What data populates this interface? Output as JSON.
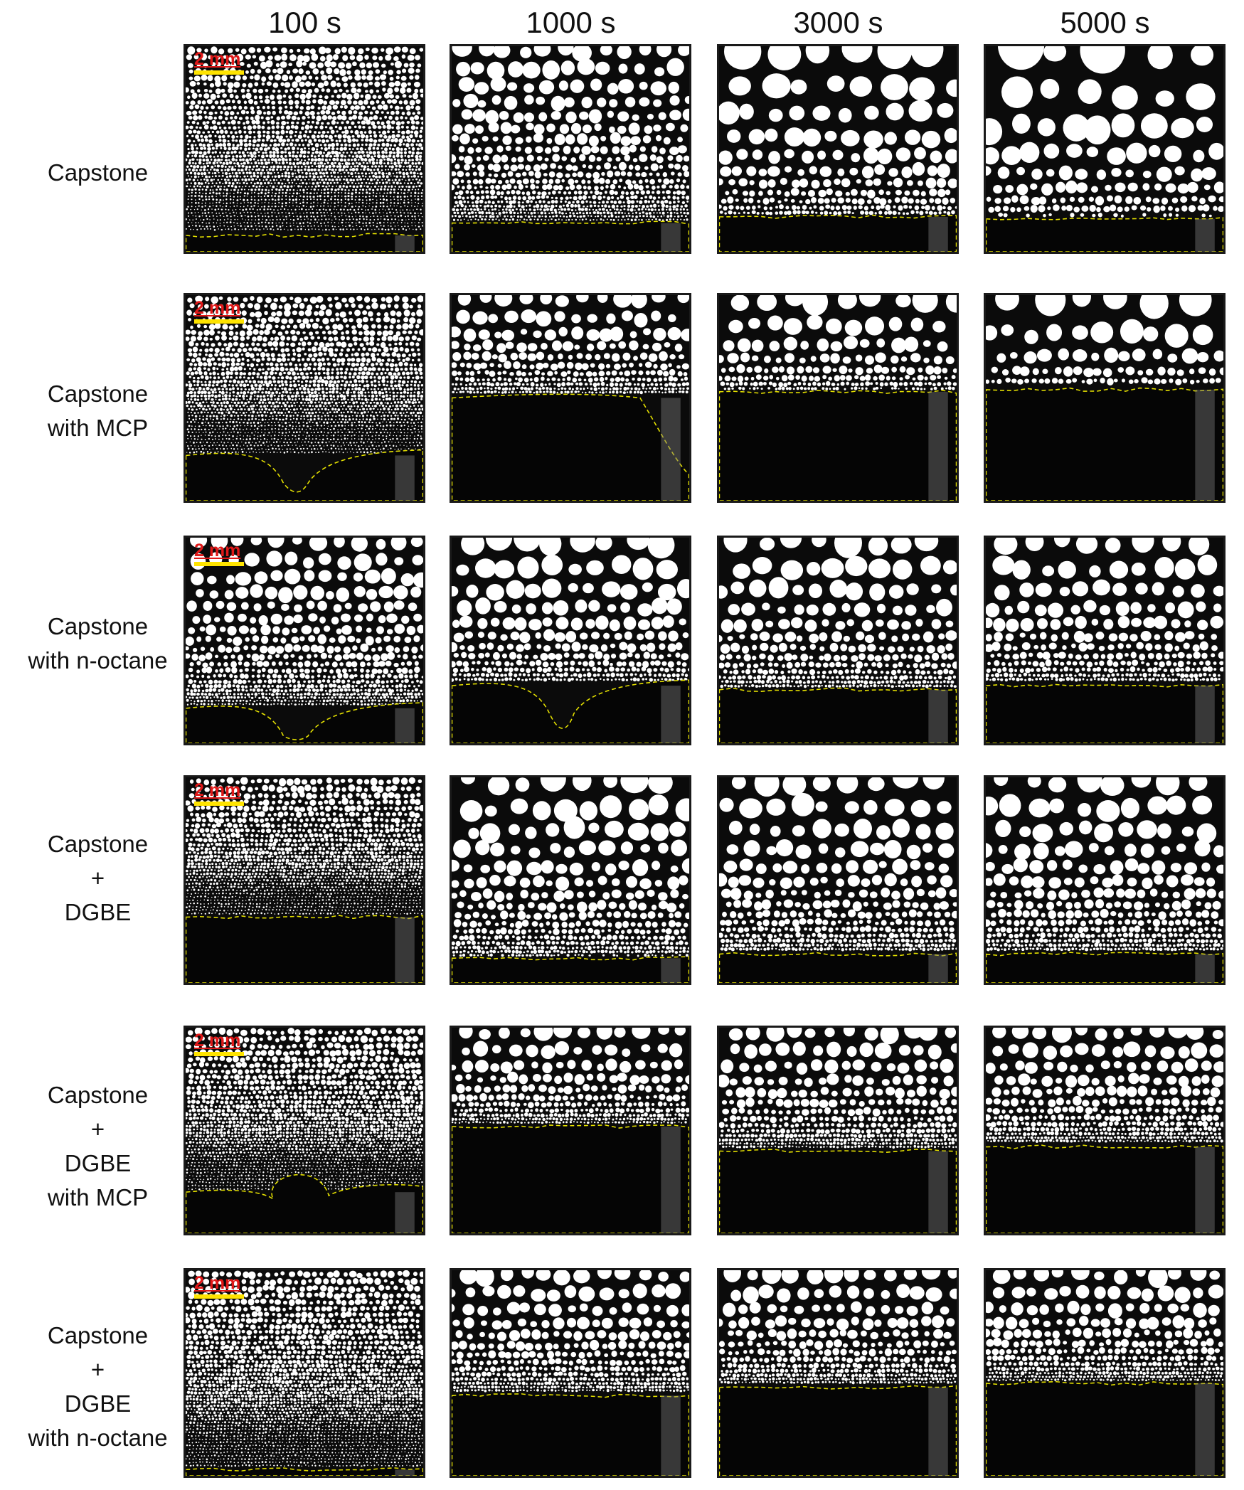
{
  "columns": [
    "100 s",
    "1000 s",
    "3000 s",
    "5000 s"
  ],
  "rows": [
    {
      "label": [
        "Capstone"
      ],
      "stage": [
        1,
        2,
        4,
        5
      ],
      "interface": [
        0.92,
        0.86,
        0.83,
        0.84
      ],
      "dip": [
        0,
        0,
        0,
        0
      ],
      "bubble": [
        0,
        0,
        0,
        0
      ]
    },
    {
      "label": [
        "Capstone",
        "with MCP"
      ],
      "stage": [
        1,
        2,
        3,
        4
      ],
      "interface": [
        0.78,
        0.5,
        0.47,
        0.46
      ],
      "dip": [
        1,
        2,
        0,
        0
      ],
      "bubble": [
        0,
        0,
        0,
        0
      ]
    },
    {
      "label": [
        "Capstone",
        "with n-octane"
      ],
      "stage": [
        2,
        3,
        3,
        3
      ],
      "interface": [
        0.83,
        0.72,
        0.74,
        0.72
      ],
      "dip": [
        1,
        1,
        0,
        0
      ],
      "bubble": [
        0,
        0,
        0,
        0
      ]
    },
    {
      "label": [
        "Capstone",
        "+",
        "DGBE"
      ],
      "stage": [
        1,
        3,
        3,
        3
      ],
      "interface": [
        0.68,
        0.88,
        0.86,
        0.86
      ],
      "dip": [
        0,
        0,
        0,
        0
      ],
      "bubble": [
        0,
        0,
        0,
        0
      ]
    },
    {
      "label": [
        "Capstone",
        "+",
        "DGBE",
        "with MCP"
      ],
      "stage": [
        1,
        2,
        2,
        2
      ],
      "interface": [
        0.8,
        0.48,
        0.6,
        0.58
      ],
      "dip": [
        3,
        0,
        0,
        0
      ],
      "bubble": [
        1,
        0,
        0,
        0
      ]
    },
    {
      "label": [
        "Capstone",
        "+",
        "DGBE",
        "with n-octane"
      ],
      "stage": [
        1,
        2,
        2,
        2
      ],
      "interface": [
        0.97,
        0.61,
        0.57,
        0.55
      ],
      "dip": [
        0,
        0,
        0,
        0
      ],
      "bubble": [
        0,
        0,
        0,
        0
      ]
    }
  ],
  "scale_bar": {
    "label": "2 mm"
  },
  "colors": {
    "background": "#0b0b0b",
    "bubble": "#ffffff",
    "interface_line": "#e6e200",
    "scale_text": "#e01818",
    "scale_bar": "#ffe400"
  }
}
